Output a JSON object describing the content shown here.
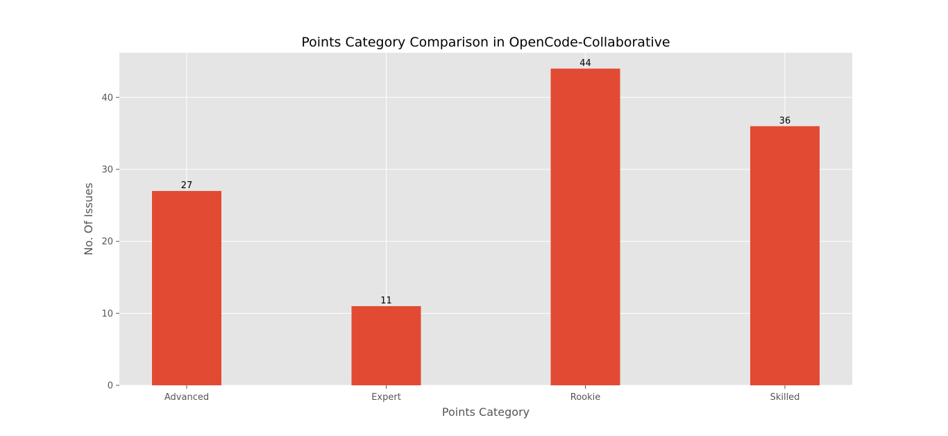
{
  "chart_data": {
    "type": "bar",
    "title": "Points Category Comparison in OpenCode-Collaborative",
    "xlabel": "Points Category",
    "ylabel": "No. Of Issues",
    "categories": [
      "Advanced",
      "Expert",
      "Rookie",
      "Skilled"
    ],
    "values": [
      27,
      11,
      44,
      36
    ],
    "data_labels": [
      "27",
      "11",
      "44",
      "36"
    ],
    "ylim": [
      0,
      46.2
    ],
    "yticks": [
      0,
      10,
      20,
      30,
      40
    ],
    "ytick_labels": [
      "0",
      "10",
      "20",
      "30",
      "40"
    ],
    "grid": true,
    "legend": "none",
    "colors": {
      "bar": "#e24a33",
      "plot_background": "#e5e5e5",
      "grid": "#ffffff",
      "tick_text": "#555555",
      "label_text": "#555555",
      "title_text": "#000000",
      "data_label_text": "#000000"
    }
  }
}
